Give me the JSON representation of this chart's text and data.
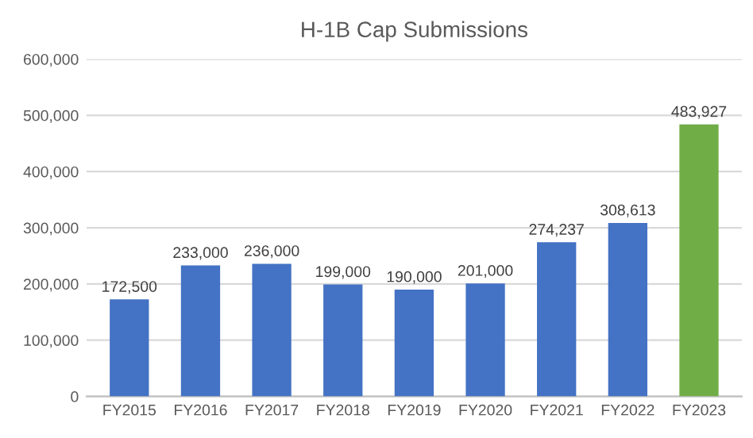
{
  "chart_data": {
    "type": "bar",
    "title": "H-1B Cap Submissions",
    "categories": [
      "FY2015",
      "FY2016",
      "FY2017",
      "FY2018",
      "FY2019",
      "FY2020",
      "FY2021",
      "FY2022",
      "FY2023"
    ],
    "values": [
      172500,
      233000,
      236000,
      199000,
      190000,
      201000,
      274237,
      308613,
      483927
    ],
    "value_labels": [
      "172,500",
      "233,000",
      "236,000",
      "199,000",
      "190,000",
      "201,000",
      "274,237",
      "308,613",
      "483,927"
    ],
    "colors": [
      "#4472c4",
      "#4472c4",
      "#4472c4",
      "#4472c4",
      "#4472c4",
      "#4472c4",
      "#4472c4",
      "#4472c4",
      "#70ad47"
    ],
    "ylim": [
      0,
      600000
    ],
    "yticks": [
      {
        "value": 0,
        "label": "0"
      },
      {
        "value": 100000,
        "label": "100,000"
      },
      {
        "value": 200000,
        "label": "200,000"
      },
      {
        "value": 300000,
        "label": "300,000"
      },
      {
        "value": 400000,
        "label": "400,000"
      },
      {
        "value": 500000,
        "label": "500,000"
      },
      {
        "value": 600000,
        "label": "600,000"
      }
    ],
    "grid": "y"
  }
}
